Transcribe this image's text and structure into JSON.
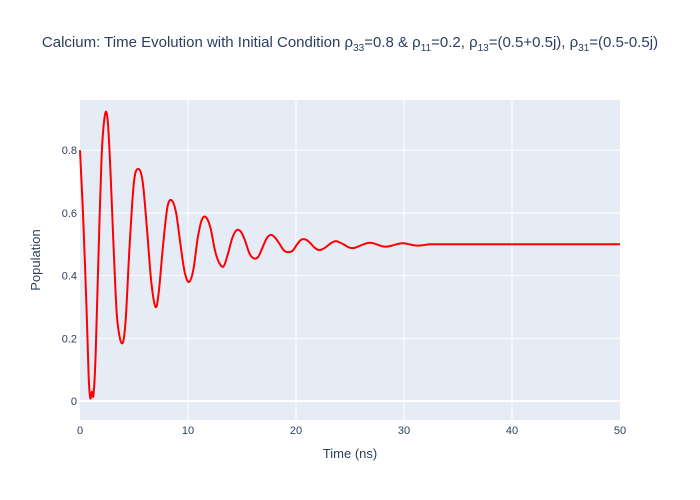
{
  "chart_data": {
    "type": "line",
    "title": {
      "prefix": "Calcium: Time Evolution with Initial Condition ",
      "parts": [
        {
          "sym": "ρ",
          "sub": "33",
          "val": "=0.8 & "
        },
        {
          "sym": "ρ",
          "sub": "11",
          "val": "=0.2, "
        },
        {
          "sym": "ρ",
          "sub": "13",
          "val": "=(0.5+0.5j), "
        },
        {
          "sym": "ρ",
          "sub": "31",
          "val": "=(0.5-0.5j)"
        }
      ]
    },
    "xlabel": "Time (ns)",
    "ylabel": "Population",
    "xlim": [
      0,
      50
    ],
    "ylim": [
      -0.06,
      0.96
    ],
    "xticks": [
      0,
      10,
      20,
      30,
      40,
      50
    ],
    "yticks": [
      0,
      0.2,
      0.4,
      0.6,
      0.8
    ],
    "grid": true,
    "series": [
      {
        "color": "#ff0000",
        "x": [
          0,
          0.3,
          0.6,
          0.8,
          0.95,
          1.1,
          1.25,
          1.45,
          1.7,
          2.0,
          2.3,
          2.55,
          2.8,
          3.1,
          3.4,
          3.7,
          4.0,
          4.25,
          4.6,
          5.0,
          5.4,
          5.8,
          6.2,
          6.6,
          7.0,
          7.3,
          7.7,
          8.1,
          8.5,
          8.9,
          9.3,
          9.7,
          10.1,
          10.5,
          10.9,
          11.3,
          11.7,
          12.1,
          12.5,
          12.9,
          13.3,
          13.7,
          14.1,
          14.5,
          14.9,
          15.3,
          15.7,
          16.1,
          16.5,
          16.9,
          17.3,
          17.7,
          18.1,
          18.5,
          18.9,
          19.3,
          19.7,
          20.1,
          20.5,
          20.9,
          21.3,
          21.7,
          22.1,
          22.5,
          22.9,
          23.3,
          23.7,
          24.1,
          24.5,
          24.9,
          25.3,
          25.7,
          26.1,
          26.5,
          26.9,
          27.3,
          27.7,
          28.1,
          28.5,
          28.9,
          29.3,
          29.7,
          30.1,
          30.5,
          30.9,
          31.3,
          31.7,
          32.1,
          32.5,
          33.0,
          33.5,
          34.0,
          34.5,
          35.0,
          36.0,
          37.0,
          38.0,
          39.0,
          40.0,
          42.0,
          44.0,
          46.0,
          48.0,
          50.0
        ],
        "y": [
          0.8,
          0.58,
          0.3,
          0.08,
          0.01,
          0.03,
          0.02,
          0.15,
          0.45,
          0.78,
          0.91,
          0.9,
          0.75,
          0.5,
          0.28,
          0.2,
          0.19,
          0.27,
          0.5,
          0.7,
          0.74,
          0.7,
          0.55,
          0.38,
          0.3,
          0.35,
          0.5,
          0.62,
          0.64,
          0.6,
          0.5,
          0.41,
          0.38,
          0.42,
          0.52,
          0.58,
          0.585,
          0.55,
          0.48,
          0.44,
          0.43,
          0.47,
          0.52,
          0.545,
          0.54,
          0.51,
          0.47,
          0.455,
          0.46,
          0.49,
          0.52,
          0.53,
          0.52,
          0.5,
          0.48,
          0.475,
          0.48,
          0.5,
          0.515,
          0.515,
          0.505,
          0.49,
          0.482,
          0.485,
          0.495,
          0.505,
          0.51,
          0.505,
          0.498,
          0.49,
          0.488,
          0.492,
          0.498,
          0.503,
          0.505,
          0.502,
          0.497,
          0.493,
          0.493,
          0.496,
          0.5,
          0.503,
          0.503,
          0.5,
          0.497,
          0.496,
          0.497,
          0.499,
          0.5,
          0.5,
          0.5,
          0.5,
          0.5,
          0.5,
          0.5,
          0.5,
          0.5,
          0.5,
          0.5,
          0.5,
          0.5,
          0.5,
          0.5,
          0.5
        ]
      }
    ]
  }
}
